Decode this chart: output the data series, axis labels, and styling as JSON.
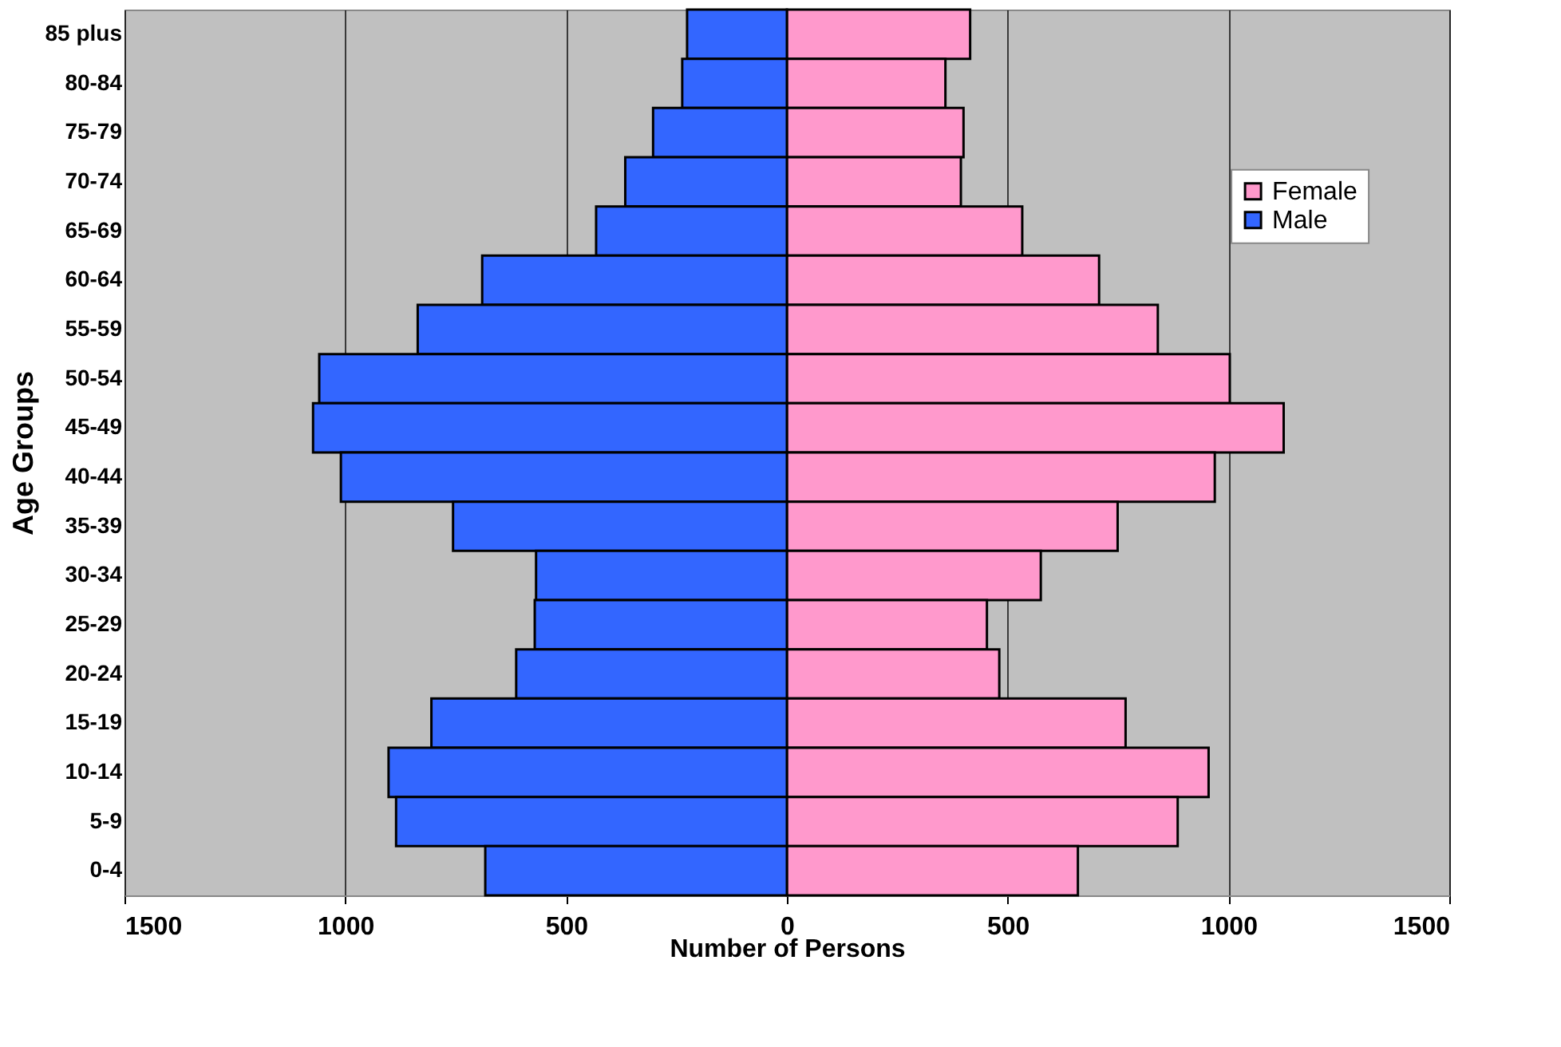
{
  "chart_data": {
    "type": "bar",
    "orientation": "horizontal",
    "xlabel": "Number of Persons",
    "ylabel": "Age Groups",
    "categories": [
      "85 plus",
      "80-84",
      "75-79",
      "70-74",
      "65-69",
      "60-64",
      "55-59",
      "50-54",
      "45-49",
      "40-44",
      "35-39",
      "30-34",
      "25-29",
      "20-24",
      "15-19",
      "10-14",
      "5-9",
      "0-4"
    ],
    "series": [
      {
        "name": "Female",
        "color": "#ff99cc",
        "values": [
          415,
          359,
          400,
          394,
          533,
          707,
          840,
          1003,
          1125,
          969,
          749,
          575,
          453,
          481,
          767,
          955,
          885,
          659
        ]
      },
      {
        "name": "Male",
        "color": "#3366ff",
        "values": [
          -226,
          -237,
          -303,
          -366,
          -432,
          -690,
          -836,
          -1059,
          -1073,
          -1010,
          -756,
          -568,
          -571,
          -613,
          -805,
          -902,
          -885,
          -683
        ]
      }
    ],
    "xlim": [
      -1500,
      1500
    ],
    "xticks": [
      {
        "value": -1500,
        "label": "1500"
      },
      {
        "value": -1000,
        "label": "1000"
      },
      {
        "value": -500,
        "label": "500"
      },
      0,
      500,
      1000,
      1500
    ],
    "stacked": true,
    "grid": "x",
    "legend": "right"
  }
}
